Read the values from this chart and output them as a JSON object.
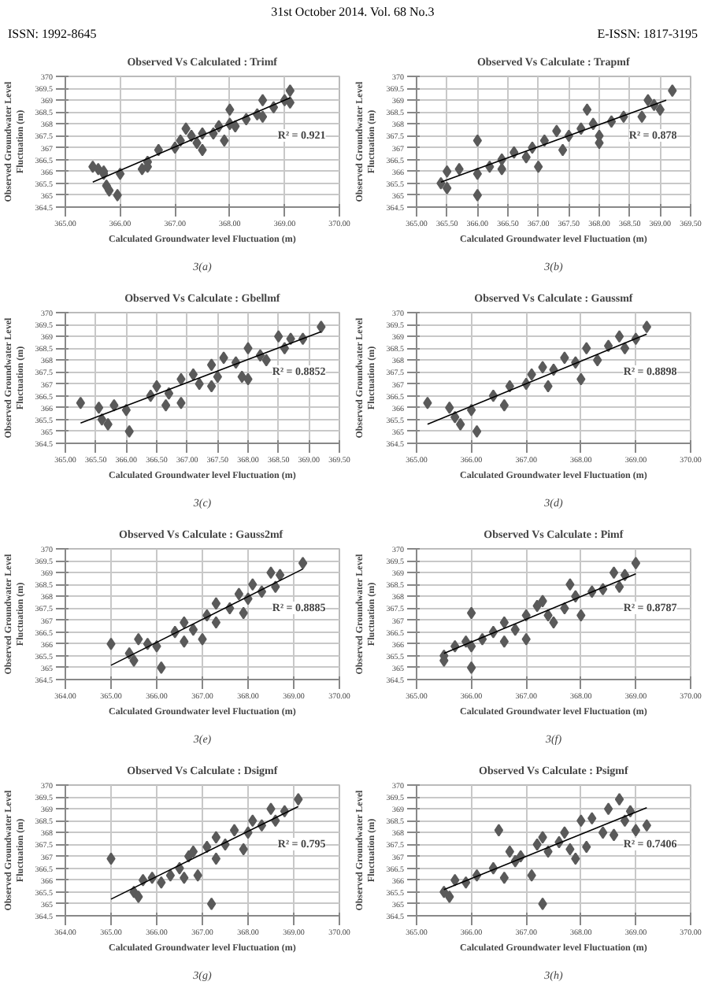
{
  "chart_data": [
    {
      "type": "other",
      "annotations": [
        "31st October 2014. Vol. 68 No.3",
        "ISSN: 1992-8645",
        "E-ISSN: 1817-3195"
      ]
    },
    {
      "type": "scatter",
      "title": "Observed Vs Calculated : Trimf",
      "xlabel": "Calculated Groundwater level Fluctuation (m)",
      "ylabel": "Observed Groundwater Level Fluctuation (m)",
      "marker": "diamond",
      "grid": true,
      "annotations": [
        "R² = 0.921",
        "3(a)"
      ],
      "xlim": [
        365,
        370
      ],
      "xticks": [
        {
          "value": 365,
          "label": "365.00"
        },
        {
          "value": 366,
          "label": "366.00"
        },
        {
          "value": 367,
          "label": "367.00"
        },
        {
          "value": 368,
          "label": "368.00"
        },
        {
          "value": 369,
          "label": "369.00"
        },
        {
          "value": 370,
          "label": "370.00"
        }
      ],
      "ylim": [
        364.5,
        370
      ],
      "yticks": [
        364.5,
        365,
        365.5,
        366,
        366.5,
        367,
        367.5,
        368,
        368.5,
        369,
        369.5,
        370
      ],
      "series": [
        {
          "color": "#5a5a5a",
          "x": [
            365.5,
            365.6,
            365.7,
            365.75,
            365.8,
            365.7,
            366.0,
            365.95,
            366.4,
            366.5,
            366.5,
            366.7,
            367.0,
            367.1,
            367.2,
            367.3,
            367.4,
            367.5,
            367.5,
            367.7,
            367.8,
            367.9,
            368.0,
            368.0,
            368.1,
            368.3,
            368.5,
            368.6,
            368.6,
            368.8,
            369.0,
            369.1,
            369.1
          ],
          "values": [
            366.2,
            366.1,
            365.9,
            365.4,
            365.2,
            366.0,
            365.9,
            365.0,
            366.1,
            366.4,
            366.2,
            366.9,
            367.0,
            367.3,
            367.8,
            367.5,
            367.2,
            367.6,
            366.9,
            367.6,
            367.9,
            367.3,
            368.0,
            368.6,
            367.9,
            368.2,
            368.4,
            369.0,
            368.3,
            368.7,
            369.0,
            369.4,
            368.9
          ]
        },
        {
          "type": "line",
          "marker": "none",
          "color": "#000000",
          "x": [
            365.5,
            369.1
          ],
          "values": [
            365.55,
            369.1
          ]
        }
      ]
    },
    {
      "type": "scatter",
      "title": "Observed Vs Calculate : Trapmf",
      "xlabel": "Calculated Groundwater level Fluctuation (m)",
      "ylabel": "Observed Groundwater Level Fluctuation (m)",
      "marker": "diamond",
      "grid": true,
      "annotations": [
        "R² = 0.878",
        "3(b)"
      ],
      "xlim": [
        365,
        369.5
      ],
      "xticks": [
        {
          "value": 365,
          "label": "365.00"
        },
        {
          "value": 365.5,
          "label": "365.50"
        },
        {
          "value": 366,
          "label": "366.00"
        },
        {
          "value": 366.5,
          "label": "366.50"
        },
        {
          "value": 367,
          "label": "367.00"
        },
        {
          "value": 367.5,
          "label": "367.50"
        },
        {
          "value": 368,
          "label": "368.00"
        },
        {
          "value": 368.5,
          "label": "368.50"
        },
        {
          "value": 369,
          "label": "369.00"
        },
        {
          "value": 369.5,
          "label": "369.50"
        }
      ],
      "ylim": [
        364.5,
        370
      ],
      "yticks": [
        364.5,
        365,
        365.5,
        366,
        366.5,
        367,
        367.5,
        368,
        368.5,
        369,
        369.5,
        370
      ],
      "series": [
        {
          "color": "#5a5a5a",
          "x": [
            365.4,
            365.5,
            365.5,
            365.7,
            366.0,
            366.0,
            366.0,
            366.2,
            366.4,
            366.4,
            366.6,
            366.8,
            366.9,
            367.0,
            367.1,
            367.3,
            367.4,
            367.5,
            367.7,
            367.8,
            367.9,
            368.0,
            368.0,
            368.2,
            368.4,
            368.7,
            368.8,
            368.9,
            369.0,
            369.2
          ],
          "values": [
            365.5,
            365.3,
            366.0,
            366.1,
            367.3,
            365.0,
            365.9,
            366.2,
            366.1,
            366.5,
            366.8,
            366.6,
            367.0,
            366.2,
            367.3,
            367.7,
            366.9,
            367.5,
            367.8,
            368.6,
            368.0,
            367.5,
            367.2,
            368.1,
            368.3,
            368.3,
            369.0,
            368.8,
            368.6,
            369.4
          ]
        },
        {
          "type": "line",
          "marker": "none",
          "color": "#000000",
          "x": [
            365.4,
            369.1
          ],
          "values": [
            365.55,
            369.0
          ]
        }
      ]
    },
    {
      "type": "scatter",
      "title": "Observed Vs Calculate : Gbellmf",
      "xlabel": "Calculated Groundwater level Fluctuation (m)",
      "ylabel": "Observed Groundwater Level Fluctuation (m)",
      "marker": "diamond",
      "grid": true,
      "annotations": [
        "R² = 0.8852",
        "3(c)"
      ],
      "xlim": [
        365,
        369.5
      ],
      "xticks": [
        {
          "value": 365,
          "label": "365.00"
        },
        {
          "value": 365.5,
          "label": "365.50"
        },
        {
          "value": 366,
          "label": "366.00"
        },
        {
          "value": 366.5,
          "label": "366.50"
        },
        {
          "value": 367,
          "label": "367.00"
        },
        {
          "value": 367.5,
          "label": "367.50"
        },
        {
          "value": 368,
          "label": "368.00"
        },
        {
          "value": 368.5,
          "label": "368.50"
        },
        {
          "value": 369,
          "label": "369.00"
        },
        {
          "value": 369.5,
          "label": "369.50"
        }
      ],
      "ylim": [
        364.5,
        370
      ],
      "yticks": [
        364.5,
        365,
        365.5,
        366,
        366.5,
        367,
        367.5,
        368,
        368.5,
        369,
        369.5,
        370
      ],
      "series": [
        {
          "color": "#5a5a5a",
          "x": [
            365.25,
            365.55,
            365.6,
            365.7,
            365.8,
            366.0,
            366.05,
            366.4,
            366.5,
            366.65,
            366.7,
            366.9,
            366.9,
            367.1,
            367.2,
            367.4,
            367.4,
            367.5,
            367.6,
            367.8,
            367.9,
            368.0,
            368.0,
            368.2,
            368.3,
            368.5,
            368.6,
            368.7,
            368.9,
            369.2
          ],
          "values": [
            366.2,
            366.0,
            365.5,
            365.3,
            366.1,
            365.9,
            365.0,
            366.5,
            366.9,
            366.1,
            366.6,
            367.2,
            366.2,
            367.4,
            367.0,
            367.8,
            366.9,
            367.3,
            368.1,
            367.9,
            367.3,
            367.2,
            368.5,
            368.2,
            368.0,
            369.0,
            368.5,
            368.9,
            368.9,
            369.4
          ]
        },
        {
          "type": "line",
          "marker": "none",
          "color": "#000000",
          "x": [
            365.25,
            369.2
          ],
          "values": [
            365.35,
            369.2
          ]
        }
      ]
    },
    {
      "type": "scatter",
      "title": "Observed Vs Calculate : Gaussmf",
      "xlabel": "Calculated Groundwater level Fluctuation (m)",
      "ylabel": "Observed Groundwater Level Fluctuation (m)",
      "marker": "diamond",
      "grid": true,
      "annotations": [
        "R² = 0.8898",
        "3(d)"
      ],
      "xlim": [
        365,
        370
      ],
      "xticks": [
        {
          "value": 365,
          "label": "365.00"
        },
        {
          "value": 366,
          "label": "366.00"
        },
        {
          "value": 367,
          "label": "367.00"
        },
        {
          "value": 368,
          "label": "368.00"
        },
        {
          "value": 369,
          "label": "369.00"
        },
        {
          "value": 370,
          "label": "370.00"
        }
      ],
      "ylim": [
        364.5,
        370
      ],
      "yticks": [
        364.5,
        365,
        365.5,
        366,
        366.5,
        367,
        367.5,
        368,
        368.5,
        369,
        369.5,
        370
      ],
      "series": [
        {
          "color": "#5a5a5a",
          "x": [
            365.2,
            365.6,
            365.7,
            365.8,
            366.0,
            366.1,
            366.4,
            366.6,
            366.7,
            367.0,
            367.1,
            367.3,
            367.4,
            367.5,
            367.7,
            367.9,
            368.0,
            368.1,
            368.3,
            368.5,
            368.7,
            368.8,
            369.0,
            369.2
          ],
          "values": [
            366.2,
            366.0,
            365.6,
            365.3,
            365.9,
            365.0,
            366.5,
            366.1,
            366.9,
            367.0,
            367.4,
            367.7,
            366.9,
            367.6,
            368.1,
            367.9,
            367.2,
            368.5,
            368.0,
            368.6,
            369.0,
            368.5,
            368.9,
            369.4
          ]
        },
        {
          "type": "line",
          "marker": "none",
          "color": "#000000",
          "x": [
            365.2,
            369.2
          ],
          "values": [
            365.3,
            369.1
          ]
        }
      ]
    },
    {
      "type": "scatter",
      "title": "Observed Vs Calculate :  Gauss2mf",
      "xlabel": "Calculated Groundwater level Fluctuation (m)",
      "ylabel": "Observed Groundwater Level Fluctuation (m)",
      "marker": "diamond",
      "grid": true,
      "annotations": [
        "R² = 0.8885",
        "3(e)"
      ],
      "xlim": [
        364,
        370
      ],
      "xticks": [
        {
          "value": 364,
          "label": "364.00"
        },
        {
          "value": 365,
          "label": "365.00"
        },
        {
          "value": 366,
          "label": "366.00"
        },
        {
          "value": 367,
          "label": "367.00"
        },
        {
          "value": 368,
          "label": "368.00"
        },
        {
          "value": 369,
          "label": "369.00"
        },
        {
          "value": 370,
          "label": "370.00"
        }
      ],
      "ylim": [
        364.5,
        370
      ],
      "yticks": [
        364.5,
        365,
        365.5,
        366,
        366.5,
        367,
        367.5,
        368,
        368.5,
        369,
        369.5,
        370
      ],
      "series": [
        {
          "color": "#5a5a5a",
          "x": [
            365.0,
            365.4,
            365.5,
            365.6,
            365.8,
            366.0,
            366.1,
            366.4,
            366.6,
            366.6,
            366.8,
            367.0,
            367.1,
            367.3,
            367.3,
            367.6,
            367.8,
            367.9,
            368.0,
            368.1,
            368.3,
            368.5,
            368.6,
            368.7,
            369.2
          ],
          "values": [
            366.0,
            365.6,
            365.3,
            366.2,
            366.0,
            365.9,
            365.0,
            366.5,
            366.9,
            366.1,
            366.6,
            366.2,
            367.2,
            367.7,
            366.9,
            367.5,
            368.1,
            367.3,
            367.9,
            368.5,
            368.2,
            369.0,
            368.4,
            368.9,
            369.4
          ]
        },
        {
          "type": "line",
          "marker": "none",
          "color": "#000000",
          "x": [
            365.0,
            369.2
          ],
          "values": [
            365.1,
            369.15
          ]
        }
      ]
    },
    {
      "type": "scatter",
      "title": "Observed Vs Calculate : Pimf",
      "xlabel": "Calculated Groundwater level Fluctuation (m)",
      "ylabel": "Observed Groundwater Level Fluctuation (m)",
      "marker": "diamond",
      "grid": true,
      "annotations": [
        "R² = 0.8787",
        "3(f)"
      ],
      "xlim": [
        365,
        370
      ],
      "xticks": [
        {
          "value": 365,
          "label": "365.00"
        },
        {
          "value": 366,
          "label": "366.00"
        },
        {
          "value": 367,
          "label": "367.00"
        },
        {
          "value": 368,
          "label": "368.00"
        },
        {
          "value": 369,
          "label": "369.00"
        },
        {
          "value": 370,
          "label": "370.00"
        }
      ],
      "ylim": [
        364.5,
        370
      ],
      "yticks": [
        364.5,
        365,
        365.5,
        366,
        366.5,
        367,
        367.5,
        368,
        368.5,
        369,
        369.5,
        370
      ],
      "series": [
        {
          "color": "#5a5a5a",
          "x": [
            365.5,
            365.5,
            365.7,
            365.9,
            366.0,
            366.0,
            366.0,
            366.2,
            366.4,
            366.6,
            366.6,
            366.8,
            367.0,
            367.0,
            367.2,
            367.3,
            367.4,
            367.5,
            367.7,
            367.8,
            367.9,
            368.0,
            368.2,
            368.4,
            368.6,
            368.7,
            368.8,
            369.0
          ],
          "values": [
            365.5,
            365.3,
            365.9,
            366.1,
            367.3,
            365.0,
            365.9,
            366.2,
            366.5,
            366.1,
            366.9,
            366.6,
            367.2,
            366.2,
            367.6,
            367.8,
            367.2,
            366.9,
            367.5,
            368.5,
            368.0,
            367.2,
            368.2,
            368.3,
            369.0,
            368.4,
            368.9,
            369.4
          ]
        },
        {
          "type": "line",
          "marker": "none",
          "color": "#000000",
          "x": [
            365.5,
            369.0
          ],
          "values": [
            365.6,
            368.95
          ]
        }
      ]
    },
    {
      "type": "scatter",
      "title": "Observed Vs Calculate : Dsigmf",
      "xlabel": "Calculated Groundwater level Fluctuation (m)",
      "ylabel": "Observed Groundwater Level Fluctuation (m)",
      "marker": "diamond",
      "grid": true,
      "annotations": [
        "R² = 0.795",
        "3(g)"
      ],
      "xlim": [
        364,
        370
      ],
      "xticks": [
        {
          "value": 364,
          "label": "364.00"
        },
        {
          "value": 365,
          "label": "365.00"
        },
        {
          "value": 366,
          "label": "366.00"
        },
        {
          "value": 367,
          "label": "367.00"
        },
        {
          "value": 368,
          "label": "368.00"
        },
        {
          "value": 369,
          "label": "369.00"
        },
        {
          "value": 370,
          "label": "370.00"
        }
      ],
      "ylim": [
        364.5,
        370
      ],
      "yticks": [
        364.5,
        365,
        365.5,
        366,
        366.5,
        367,
        367.5,
        368,
        368.5,
        369,
        369.5,
        370
      ],
      "series": [
        {
          "color": "#5a5a5a",
          "x": [
            365.0,
            365.5,
            365.6,
            365.7,
            365.9,
            366.1,
            366.3,
            366.5,
            366.6,
            366.7,
            366.8,
            366.9,
            367.1,
            367.2,
            367.3,
            367.3,
            367.5,
            367.7,
            367.9,
            368.0,
            368.1,
            368.3,
            368.5,
            368.6,
            368.8,
            369.1
          ],
          "values": [
            366.9,
            365.5,
            365.3,
            366.0,
            366.1,
            365.9,
            366.2,
            366.5,
            366.1,
            367.0,
            367.2,
            366.2,
            367.4,
            365.0,
            367.8,
            366.9,
            367.5,
            368.1,
            367.3,
            368.0,
            368.5,
            368.3,
            369.0,
            368.5,
            368.9,
            369.4
          ]
        },
        {
          "type": "line",
          "marker": "none",
          "color": "#000000",
          "x": [
            365.0,
            369.1
          ],
          "values": [
            365.2,
            369.1
          ]
        }
      ]
    },
    {
      "type": "scatter",
      "title": "Observed Vs Calculate : Psigmf",
      "xlabel": "Calculated Groundwater level Fluctuation (m)",
      "ylabel": "Observed Groundwater Level Fluctuation (m)",
      "marker": "diamond",
      "grid": true,
      "annotations": [
        "R² = 0.7406",
        "3(h)"
      ],
      "xlim": [
        365,
        370
      ],
      "xticks": [
        {
          "value": 365,
          "label": "365.00"
        },
        {
          "value": 366,
          "label": "366.00"
        },
        {
          "value": 367,
          "label": "367.00"
        },
        {
          "value": 368,
          "label": "368.00"
        },
        {
          "value": 369,
          "label": "369.00"
        },
        {
          "value": 370,
          "label": "370.00"
        }
      ],
      "ylim": [
        364.5,
        370
      ],
      "yticks": [
        364.5,
        365,
        365.5,
        366,
        366.5,
        367,
        367.5,
        368,
        368.5,
        369,
        369.5,
        370
      ],
      "series": [
        {
          "color": "#5a5a5a",
          "x": [
            365.5,
            365.6,
            365.7,
            365.9,
            366.1,
            366.4,
            366.5,
            366.6,
            366.7,
            366.8,
            366.9,
            367.1,
            367.2,
            367.3,
            367.3,
            367.4,
            367.6,
            367.7,
            367.8,
            367.9,
            368.0,
            368.1,
            368.2,
            368.4,
            368.5,
            368.6,
            368.7,
            368.8,
            368.9,
            369.0,
            369.2
          ],
          "values": [
            365.5,
            365.3,
            366.0,
            365.9,
            366.2,
            366.5,
            368.1,
            366.1,
            367.2,
            366.8,
            367.0,
            366.2,
            367.5,
            365.0,
            367.8,
            367.2,
            367.6,
            368.0,
            367.3,
            366.9,
            368.5,
            367.4,
            368.6,
            368.0,
            369.0,
            367.9,
            369.4,
            368.5,
            368.9,
            368.1,
            368.3
          ]
        },
        {
          "type": "line",
          "marker": "none",
          "color": "#000000",
          "x": [
            365.5,
            369.2
          ],
          "values": [
            365.6,
            369.05
          ]
        }
      ]
    }
  ]
}
